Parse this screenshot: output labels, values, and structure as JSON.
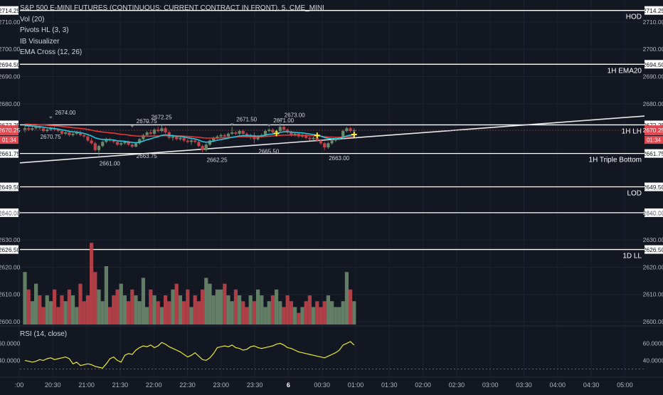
{
  "legend": {
    "title": "S&P 500 E-MINI FUTURES (CONTINUOUS: CURRENT CONTRACT IN FRONT), 5, CME_MINI",
    "indicators": [
      "Vol (20)",
      "Pivots HL (3, 3)",
      "IB Visualizer",
      "EMA Cross (12, 26)"
    ]
  },
  "rsi_legend": "RSI (14, close)",
  "date_marker": "6",
  "colors": {
    "background": "#131722",
    "up": "#6b8a6b",
    "down": "#c0444a",
    "ema_fast": "#26c6da",
    "ema_slow": "#e53935",
    "rsi": "#e8e83a",
    "level_line": "#ffffff",
    "price_badge": "#e0474f"
  },
  "chart_data": [
    {
      "type": "candlestick",
      "title": "S&P 500 E-MINI FUTURES (CONTINUOUS: CURRENT CONTRACT IN FRONT), 5, CME_MINI",
      "yrange": [
        2600,
        2716
      ],
      "y_ticks": [
        2710,
        2700,
        2690,
        2680,
        2640,
        2630,
        2620,
        2610,
        2600
      ],
      "x_ticks": [
        ":00",
        "20:30",
        "21:00",
        "21:30",
        "22:00",
        "22:30",
        "23:00",
        "23:30",
        "6",
        "00:30",
        "01:00",
        "01:30",
        "02:00",
        "02:30",
        "03:00",
        "03:30",
        "04:00",
        "04:30",
        "05:00"
      ],
      "current_price": "2670.25",
      "countdown": "01:34",
      "levels": [
        {
          "label": "HOD",
          "value": 2714.25
        },
        {
          "label": "1H EMA20",
          "value": 2694.5
        },
        {
          "label": "1H LH",
          "value": 2672.25
        },
        {
          "label": "1H Triple Bottom",
          "value": 2661.75
        },
        {
          "label": "LOD",
          "value": 2649.5
        },
        {
          "label": "",
          "value": 2640.0
        },
        {
          "label": "1D LL",
          "value": 2626.5
        }
      ],
      "pivot_labels": [
        {
          "text": "2674.00",
          "value": 2674.0,
          "kind": "high"
        },
        {
          "text": "2670.75",
          "value": 2670.75,
          "kind": "low"
        },
        {
          "text": "2670.75",
          "value": 2670.75,
          "kind": "high"
        },
        {
          "text": "2672.25",
          "value": 2672.25,
          "kind": "high"
        },
        {
          "text": "2661.00",
          "value": 2661.0,
          "kind": "low"
        },
        {
          "text": "2663.75",
          "value": 2663.75,
          "kind": "low"
        },
        {
          "text": "2662.25",
          "value": 2662.25,
          "kind": "low"
        },
        {
          "text": "2671.50",
          "value": 2671.5,
          "kind": "high"
        },
        {
          "text": "2671.00",
          "value": 2671.0,
          "kind": "high"
        },
        {
          "text": "2673.00",
          "value": 2673.0,
          "kind": "high"
        },
        {
          "text": "2665.50",
          "value": 2665.5,
          "kind": "low"
        },
        {
          "text": "2663.00",
          "value": 2663.0,
          "kind": "low"
        }
      ],
      "candles": [
        [
          2670.5,
          2672.0,
          2669.5,
          2671.0
        ],
        [
          2671.0,
          2672.5,
          2670.0,
          2670.5
        ],
        [
          2670.5,
          2671.5,
          2670.0,
          2671.0
        ],
        [
          2671.0,
          2672.0,
          2670.5,
          2671.5
        ],
        [
          2671.5,
          2672.0,
          2670.5,
          2671.0
        ],
        [
          2671.0,
          2671.5,
          2669.5,
          2670.0
        ],
        [
          2670.0,
          2671.0,
          2669.5,
          2670.5
        ],
        [
          2670.5,
          2671.5,
          2670.0,
          2671.0
        ],
        [
          2671.0,
          2671.5,
          2670.0,
          2670.5
        ],
        [
          2670.5,
          2671.0,
          2669.5,
          2670.0
        ],
        [
          2670.0,
          2670.5,
          2668.5,
          2669.0
        ],
        [
          2669.0,
          2670.0,
          2668.5,
          2669.5
        ],
        [
          2669.5,
          2670.0,
          2668.0,
          2668.5
        ],
        [
          2668.5,
          2669.5,
          2668.0,
          2669.0
        ],
        [
          2669.0,
          2670.0,
          2668.5,
          2669.5
        ],
        [
          2669.5,
          2670.0,
          2668.0,
          2668.5
        ],
        [
          2668.5,
          2669.0,
          2667.5,
          2668.0
        ],
        [
          2668.0,
          2668.5,
          2666.0,
          2666.5
        ],
        [
          2666.5,
          2667.5,
          2665.0,
          2665.5
        ],
        [
          2665.5,
          2666.0,
          2662.5,
          2663.0
        ],
        [
          2663.0,
          2665.0,
          2661.0,
          2664.5
        ],
        [
          2664.5,
          2666.5,
          2664.0,
          2666.0
        ],
        [
          2666.0,
          2667.5,
          2665.5,
          2667.0
        ],
        [
          2667.0,
          2667.5,
          2666.0,
          2666.5
        ],
        [
          2666.5,
          2667.0,
          2665.5,
          2666.0
        ],
        [
          2666.0,
          2666.5,
          2664.5,
          2665.0
        ],
        [
          2665.0,
          2666.0,
          2664.5,
          2665.5
        ],
        [
          2665.5,
          2666.5,
          2665.0,
          2666.0
        ],
        [
          2666.0,
          2666.5,
          2664.5,
          2665.0
        ],
        [
          2665.0,
          2665.5,
          2663.75,
          2664.25
        ],
        [
          2664.25,
          2666.0,
          2664.0,
          2665.5
        ],
        [
          2665.5,
          2667.5,
          2665.0,
          2667.0
        ],
        [
          2667.0,
          2669.0,
          2666.5,
          2668.5
        ],
        [
          2668.5,
          2670.0,
          2668.0,
          2669.5
        ],
        [
          2669.5,
          2670.5,
          2668.5,
          2669.0
        ],
        [
          2669.0,
          2671.0,
          2668.5,
          2670.5
        ],
        [
          2670.5,
          2671.5,
          2669.5,
          2670.0
        ],
        [
          2670.0,
          2672.25,
          2669.5,
          2671.0
        ],
        [
          2671.0,
          2671.5,
          2669.0,
          2669.5
        ],
        [
          2669.5,
          2670.0,
          2667.0,
          2667.5
        ],
        [
          2667.5,
          2668.5,
          2666.5,
          2668.0
        ],
        [
          2668.0,
          2668.5,
          2666.5,
          2667.0
        ],
        [
          2667.0,
          2668.0,
          2666.5,
          2667.5
        ],
        [
          2667.5,
          2668.0,
          2666.0,
          2666.5
        ],
        [
          2666.5,
          2667.0,
          2665.5,
          2666.0
        ],
        [
          2666.0,
          2667.0,
          2665.0,
          2666.5
        ],
        [
          2666.5,
          2667.0,
          2665.5,
          2666.0
        ],
        [
          2666.0,
          2666.5,
          2664.0,
          2664.5
        ],
        [
          2664.5,
          2665.0,
          2662.25,
          2663.0
        ],
        [
          2663.0,
          2665.5,
          2662.5,
          2665.0
        ],
        [
          2665.0,
          2667.0,
          2664.5,
          2666.5
        ],
        [
          2666.5,
          2668.0,
          2666.0,
          2667.5
        ],
        [
          2667.5,
          2668.5,
          2667.0,
          2668.0
        ],
        [
          2668.0,
          2669.0,
          2667.5,
          2668.5
        ],
        [
          2668.5,
          2669.0,
          2667.5,
          2668.0
        ],
        [
          2668.0,
          2669.5,
          2667.5,
          2669.0
        ],
        [
          2669.0,
          2671.5,
          2668.5,
          2669.5
        ],
        [
          2669.5,
          2670.0,
          2668.5,
          2669.0
        ],
        [
          2669.0,
          2670.5,
          2668.5,
          2670.0
        ],
        [
          2670.0,
          2670.5,
          2668.5,
          2669.0
        ],
        [
          2669.0,
          2669.5,
          2667.5,
          2668.0
        ],
        [
          2668.0,
          2669.0,
          2667.0,
          2668.5
        ],
        [
          2668.5,
          2669.5,
          2665.5,
          2667.0
        ],
        [
          2667.0,
          2668.5,
          2666.5,
          2668.0
        ],
        [
          2668.0,
          2669.0,
          2667.5,
          2668.5
        ],
        [
          2668.5,
          2670.5,
          2668.0,
          2670.0
        ],
        [
          2670.0,
          2671.0,
          2669.5,
          2670.5
        ],
        [
          2670.5,
          2671.0,
          2669.0,
          2669.5
        ],
        [
          2669.5,
          2670.5,
          2669.0,
          2670.0
        ],
        [
          2670.0,
          2673.0,
          2669.5,
          2671.5
        ],
        [
          2671.5,
          2672.0,
          2670.0,
          2670.5
        ],
        [
          2670.5,
          2671.0,
          2669.0,
          2669.5
        ],
        [
          2669.5,
          2670.0,
          2668.0,
          2668.5
        ],
        [
          2668.5,
          2669.5,
          2668.0,
          2669.0
        ],
        [
          2669.0,
          2669.5,
          2667.5,
          2668.0
        ],
        [
          2668.0,
          2669.0,
          2667.5,
          2668.5
        ],
        [
          2668.5,
          2669.0,
          2667.0,
          2667.5
        ],
        [
          2667.5,
          2668.0,
          2666.5,
          2667.0
        ],
        [
          2667.0,
          2668.0,
          2666.5,
          2667.5
        ],
        [
          2667.5,
          2668.0,
          2666.0,
          2666.5
        ],
        [
          2666.5,
          2667.0,
          2665.0,
          2665.5
        ],
        [
          2665.5,
          2666.0,
          2663.0,
          2664.0
        ],
        [
          2664.0,
          2666.0,
          2663.5,
          2665.5
        ],
        [
          2665.5,
          2667.0,
          2665.0,
          2666.5
        ],
        [
          2666.5,
          2667.5,
          2666.0,
          2667.0
        ],
        [
          2667.0,
          2668.0,
          2666.5,
          2667.5
        ],
        [
          2667.5,
          2670.5,
          2667.0,
          2670.0
        ],
        [
          2670.0,
          2671.5,
          2669.5,
          2671.0
        ],
        [
          2671.0,
          2671.5,
          2669.5,
          2670.0
        ],
        [
          2670.0,
          2671.0,
          2669.5,
          2670.25
        ]
      ],
      "ema_fast": [
        2672.0,
        2671.9,
        2671.8,
        2671.7,
        2671.6,
        2671.4,
        2671.2,
        2671.1,
        2670.9,
        2670.7,
        2670.4,
        2670.2,
        2669.9,
        2669.7,
        2669.6,
        2669.4,
        2669.1,
        2668.7,
        2668.2,
        2667.5,
        2667.1,
        2666.9,
        2666.9,
        2666.8,
        2666.7,
        2666.4,
        2666.3,
        2666.2,
        2666.0,
        2665.8,
        2665.7,
        2665.9,
        2666.3,
        2666.8,
        2667.1,
        2667.6,
        2667.9,
        2668.4,
        2668.6,
        2668.4,
        2668.3,
        2668.1,
        2668.0,
        2667.8,
        2667.5,
        2667.3,
        2667.1,
        2666.7,
        2666.1,
        2665.9,
        2666.0,
        2666.3,
        2666.6,
        2666.9,
        2667.1,
        2667.4,
        2667.7,
        2667.9,
        2668.2,
        2668.3,
        2668.3,
        2668.3,
        2668.1,
        2668.1,
        2668.2,
        2668.5,
        2668.8,
        2668.9,
        2669.1,
        2669.5,
        2669.7,
        2669.7,
        2669.6,
        2669.5,
        2669.4,
        2669.3,
        2669.1,
        2668.9,
        2668.7,
        2668.4,
        2668.1,
        2667.6,
        2667.3,
        2667.2,
        2667.2,
        2667.3,
        2667.7,
        2668.2,
        2668.5,
        2668.7
      ],
      "ema_slow": [
        2672.5,
        2672.5,
        2672.4,
        2672.4,
        2672.3,
        2672.2,
        2672.1,
        2672.0,
        2671.9,
        2671.8,
        2671.7,
        2671.5,
        2671.4,
        2671.2,
        2671.1,
        2670.9,
        2670.8,
        2670.6,
        2670.3,
        2670.0,
        2669.8,
        2669.6,
        2669.5,
        2669.3,
        2669.2,
        2669.0,
        2668.8,
        2668.7,
        2668.5,
        2668.3,
        2668.2,
        2668.1,
        2668.1,
        2668.1,
        2668.1,
        2668.2,
        2668.2,
        2668.3,
        2668.3,
        2668.3,
        2668.3,
        2668.2,
        2668.2,
        2668.1,
        2668.0,
        2667.9,
        2667.8,
        2667.7,
        2667.5,
        2667.4,
        2667.4,
        2667.4,
        2667.4,
        2667.5,
        2667.5,
        2667.6,
        2667.7,
        2667.8,
        2667.9,
        2667.9,
        2667.9,
        2667.9,
        2667.9,
        2667.9,
        2667.9,
        2668.0,
        2668.1,
        2668.2,
        2668.3,
        2668.4,
        2668.5,
        2668.5,
        2668.5,
        2668.5,
        2668.5,
        2668.4,
        2668.4,
        2668.3,
        2668.3,
        2668.2,
        2668.1,
        2667.9,
        2667.8,
        2667.8,
        2667.7,
        2667.7,
        2667.8,
        2667.9,
        2668.0,
        2668.1
      ],
      "volume": [
        9,
        6,
        4,
        7,
        5,
        3,
        5,
        4,
        6,
        3,
        5,
        4,
        6,
        5,
        3,
        7,
        4,
        5,
        14,
        9,
        6,
        4,
        10,
        3,
        5,
        6,
        7,
        5,
        4,
        6,
        5,
        4,
        8,
        3,
        6,
        5,
        4,
        3,
        5,
        4,
        6,
        7,
        5,
        4,
        6,
        3,
        5,
        4,
        6,
        8,
        7,
        5,
        6,
        6,
        7,
        5,
        4,
        6,
        5,
        4,
        3,
        5,
        4,
        6,
        5,
        3,
        4,
        5,
        6,
        4,
        3,
        5,
        4,
        3,
        2,
        3,
        4,
        5,
        3,
        4,
        3,
        4,
        5,
        4,
        3,
        3,
        4,
        9,
        6,
        4
      ]
    },
    {
      "type": "line",
      "title": "RSI (14, close)",
      "yrange": [
        27,
        72
      ],
      "y_ticks": [
        "60.0000",
        "40.0000"
      ],
      "values": [
        40,
        39,
        38,
        39,
        41,
        40,
        42,
        43,
        41,
        42,
        43,
        44,
        42,
        36,
        38,
        34,
        35,
        36,
        35,
        33,
        32,
        31,
        36,
        42,
        44,
        40,
        38,
        46,
        48,
        47,
        52,
        55,
        57,
        56,
        58,
        55,
        57,
        61,
        59,
        56,
        54,
        52,
        50,
        47,
        44,
        46,
        49,
        45,
        41,
        40,
        43,
        48,
        55,
        56,
        57,
        56,
        58,
        55,
        54,
        52,
        53,
        56,
        57,
        55,
        54,
        55,
        56,
        57,
        59,
        60,
        58,
        55,
        54,
        52,
        50,
        49,
        48,
        47,
        46,
        45,
        44,
        43,
        45,
        47,
        49,
        52,
        58,
        60,
        62,
        58
      ]
    }
  ]
}
